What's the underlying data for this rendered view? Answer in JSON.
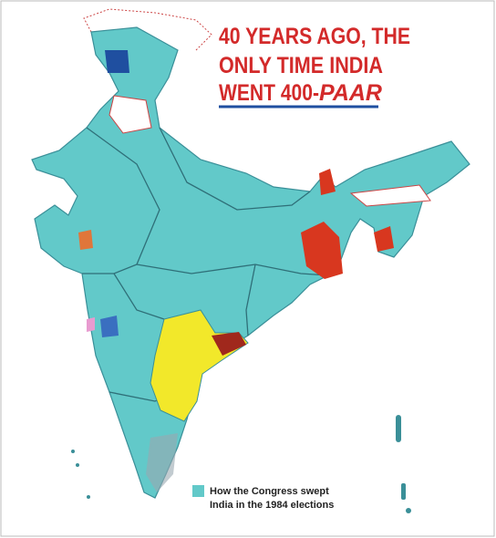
{
  "title": {
    "lines": [
      "40 YEARS AGO, THE",
      "ONLY TIME INDIA"
    ],
    "last_line": "WENT 400-",
    "last_line_emphasis": "PAAR"
  },
  "legend": {
    "lines": [
      "How the Congress swept",
      "India in the 1984 elections"
    ]
  }
}
